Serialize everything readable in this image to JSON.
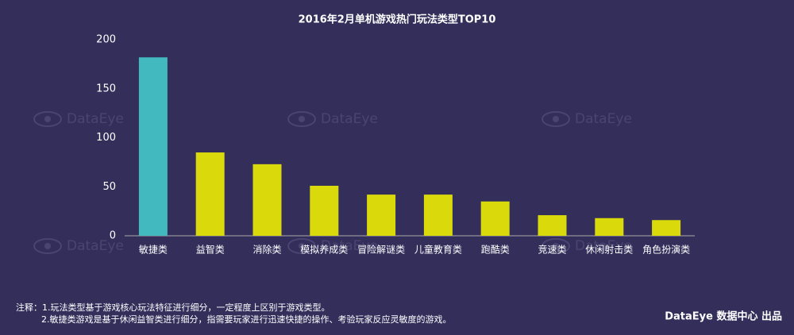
{
  "chart_data": {
    "type": "bar",
    "title": "2016年2月单机游戏热门玩法类型TOP10",
    "categories": [
      "敏捷类",
      "益智类",
      "消除类",
      "模拟养成类",
      "冒险解谜类",
      "儿童教育类",
      "跑酷类",
      "竞速类",
      "休闲射击类",
      "角色扮演类"
    ],
    "values": [
      182,
      85,
      73,
      51,
      42,
      42,
      35,
      21,
      18,
      16
    ],
    "colors": [
      "#41b9be",
      "#d9d90c",
      "#d9d90c",
      "#d9d90c",
      "#d9d90c",
      "#d9d90c",
      "#d9d90c",
      "#d9d90c",
      "#d9d90c",
      "#d9d90c"
    ],
    "ylim": [
      0,
      200
    ],
    "yticks": [
      0,
      50,
      100,
      150,
      200
    ],
    "grid": false,
    "watermark": "DataEye",
    "notes": [
      "注释：1.玩法类型基于游戏核心玩法特征进行细分，一定程度上区别于游戏类型。",
      "2.敏捷类游戏是基于休闲益智类进行细分，指需要玩家进行迅速快捷的操作、考验玩家反应灵敏度的游戏。"
    ],
    "source": "DataEye 数据中心 出品"
  }
}
